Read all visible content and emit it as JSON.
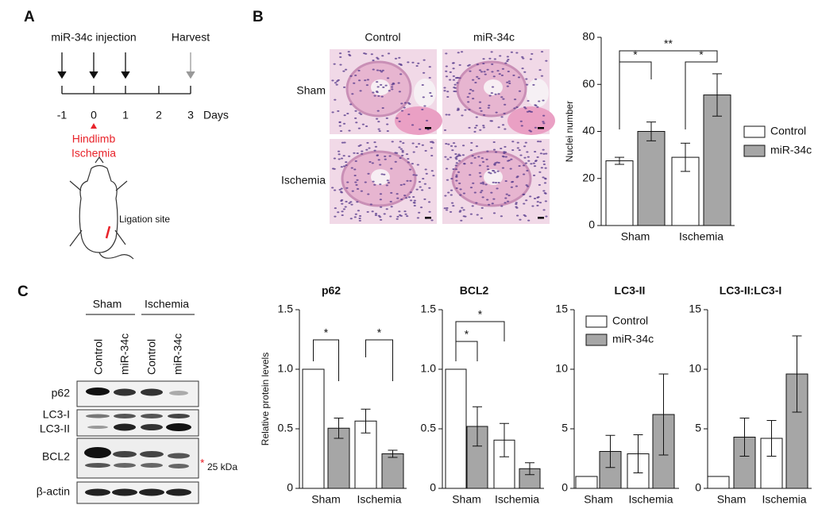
{
  "panel_labels": [
    "A",
    "B",
    "C"
  ],
  "timeline": {
    "injection": "miR-34c injection",
    "harvest": "Harvest",
    "days": [
      "-1",
      "0",
      "1",
      "2",
      "3"
    ],
    "unit": "Days",
    "event": [
      "Hindlimb",
      "Ischemia"
    ],
    "ligation": "Ligation site"
  },
  "histology": {
    "columns": [
      "Control",
      "miR-34c"
    ],
    "rows": [
      "Sham",
      "Ischemia"
    ]
  },
  "blot": {
    "groups": [
      "Sham",
      "Ischemia"
    ],
    "lanes": [
      "Control",
      "miR-34c",
      "Control",
      "miR-34c"
    ],
    "rows": [
      "p62",
      "LC3-I",
      "LC3-II",
      "BCL2",
      "β-actin"
    ],
    "marker_star": "*",
    "marker": "25 kDa"
  },
  "chart_data": [
    {
      "type": "bar",
      "ylabel": "Nuclei number",
      "categories": [
        "Sham",
        "Ischemia"
      ],
      "series": [
        {
          "name": "Control",
          "color": "#ffffff",
          "values": [
            27.5,
            29
          ],
          "errors": [
            1.5,
            6
          ]
        },
        {
          "name": "miR-34c",
          "color": "#a6a6a6",
          "values": [
            40,
            55.5
          ],
          "errors": [
            4,
            9
          ]
        }
      ],
      "ylim": [
        0,
        80
      ],
      "yticks": [
        0,
        20,
        40,
        60,
        80
      ],
      "legend": "right",
      "annotations": [
        "*",
        "*",
        "**"
      ]
    },
    {
      "type": "bar",
      "title": "p62",
      "ylabel": "Relative protein levels",
      "categories": [
        "Sham",
        "Ischemia"
      ],
      "series": [
        {
          "color": "#ffffff",
          "values": [
            1,
            0.565
          ],
          "errors": [
            0,
            0.1
          ]
        },
        {
          "color": "#a6a6a6",
          "values": [
            0.505,
            0.29
          ],
          "errors": [
            0.085,
            0.03
          ]
        }
      ],
      "ylim": [
        0,
        1.5
      ],
      "yticks": [
        0,
        0.5,
        {
          "value": 1,
          "label": "1.0"
        },
        1.5
      ],
      "annotations": [
        "*",
        "*"
      ]
    },
    {
      "type": "bar",
      "title": "BCL2",
      "categories": [
        "Sham",
        "Ischemia"
      ],
      "series": [
        {
          "color": "#ffffff",
          "values": [
            1,
            0.405
          ],
          "errors": [
            0,
            0.14
          ]
        },
        {
          "color": "#a6a6a6",
          "values": [
            0.52,
            0.165
          ],
          "errors": [
            0.165,
            0.05
          ]
        }
      ],
      "ylim": [
        0,
        1.5
      ],
      "yticks": [
        0,
        0.5,
        {
          "value": 1,
          "label": "1.0"
        },
        1.5
      ],
      "annotations": [
        "*",
        "*"
      ]
    },
    {
      "type": "bar",
      "title": "LC3-II",
      "categories": [
        "Sham",
        "Ischemia"
      ],
      "series": [
        {
          "name": "Control",
          "color": "#ffffff",
          "values": [
            1,
            2.9
          ],
          "errors": [
            0,
            1.6
          ]
        },
        {
          "name": "miR-34c",
          "color": "#a6a6a6",
          "values": [
            3.1,
            6.2
          ],
          "errors": [
            1.35,
            3.4
          ]
        }
      ],
      "ylim": [
        0,
        15
      ],
      "yticks": [
        0,
        5,
        10,
        15
      ],
      "legend": "top"
    },
    {
      "type": "bar",
      "title": "LC3-II:LC3-I",
      "categories": [
        "Sham",
        "Ischemia"
      ],
      "series": [
        {
          "color": "#ffffff",
          "values": [
            1,
            4.2
          ],
          "errors": [
            0,
            1.5
          ]
        },
        {
          "color": "#a6a6a6",
          "values": [
            4.3,
            9.6
          ],
          "errors": [
            1.6,
            3.2
          ]
        }
      ],
      "ylim": [
        0,
        15
      ],
      "yticks": [
        0,
        5,
        10,
        15
      ]
    }
  ]
}
